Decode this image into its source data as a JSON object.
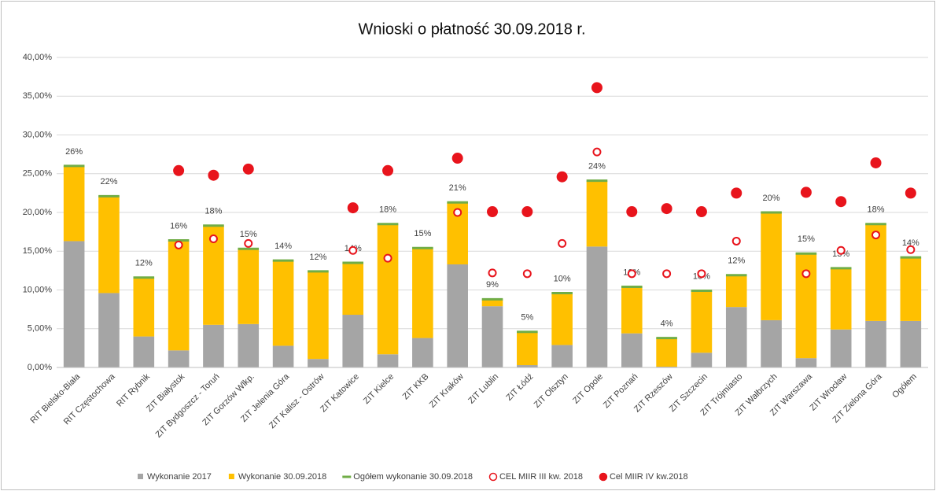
{
  "chart_data": {
    "type": "stacked-bar-marker",
    "title": "Wnioski o płatność 30.09.2018 r.",
    "categories": [
      "RIT Bielsko-Biała",
      "RIT Częstochowa",
      "RIT Rybnik",
      "ZIT Białystok",
      "ZIT Bydgoszcz - Toruń",
      "ZIT Gorzów Wlkp.",
      "ZIT Jelenia Góra",
      "ZIT Kalisz - Ostrów",
      "ZIT Katowice",
      "ZIT Kielce",
      "ZIT KKB",
      "ZIT Kraków",
      "ZIT Lublin",
      "ZIT Łódź",
      "ZIT Olsztyn",
      "ZIT Opole",
      "ZIT Poznań",
      "ZIT Rzeszów",
      "ZIT Szczecin",
      "ZIT Trójmiasto",
      "ZIT Wałbrzych",
      "ZIT Warszawa",
      "ZIT Wrocław",
      "ZIT Zielona Góra",
      "Ogółem"
    ],
    "series": [
      {
        "name": "Wykonanie 2017",
        "kind": "stack",
        "marker": "square",
        "color": "#a5a5a5",
        "values": [
          16.3,
          9.6,
          4,
          2.2,
          5.5,
          5.6,
          2.8,
          1.1,
          6.8,
          1.7,
          3.8,
          13.3,
          7.9,
          0.3,
          2.9,
          15.6,
          4.4,
          0.1,
          1.9,
          7.8,
          6.1,
          1.2,
          4.9,
          6,
          6
        ]
      },
      {
        "name": "Wykonanie 30.09.2018",
        "kind": "stack",
        "marker": "square",
        "color": "#ffc000",
        "values": [
          9.7,
          12.5,
          7.6,
          14.2,
          12.8,
          9.7,
          11,
          11.3,
          6.7,
          16.8,
          11.6,
          8,
          0.9,
          4.3,
          6.7,
          8.5,
          6,
          3.7,
          8,
          4.1,
          13.9,
          13.5,
          7.9,
          12.5,
          8.2
        ]
      },
      {
        "name": "Ogółem wykonanie 30.09.2018",
        "kind": "dash",
        "marker": "dash",
        "color": "#70ad47",
        "values": [
          26,
          22.1,
          11.6,
          16.4,
          18.3,
          15.3,
          13.8,
          12.4,
          13.5,
          18.5,
          15.4,
          21.3,
          8.8,
          4.6,
          9.6,
          24.1,
          10.4,
          3.8,
          9.9,
          11.9,
          20,
          14.7,
          12.8,
          18.5,
          14.2
        ],
        "value_labels": [
          "26%",
          "22%",
          "12%",
          "16%",
          "18%",
          "15%",
          "14%",
          "12%",
          "14%",
          "18%",
          "15%",
          "21%",
          "9%",
          "5%",
          "10%",
          "24%",
          "10%",
          "4%",
          "10%",
          "12%",
          "20%",
          "15%",
          "13%",
          "18%",
          "14%"
        ]
      },
      {
        "name": "CEL MIIR III kw. 2018",
        "kind": "point",
        "marker": "open-circle",
        "color": "#e8141c",
        "values": [
          null,
          null,
          null,
          15.8,
          16.6,
          16,
          null,
          null,
          15.1,
          14.1,
          null,
          20,
          12.2,
          12.1,
          16,
          27.8,
          12.1,
          12.1,
          12.1,
          16.3,
          null,
          12.1,
          15.1,
          17.1,
          15.2
        ]
      },
      {
        "name": "Cel MIIR IV kw.2018",
        "kind": "point",
        "marker": "circle",
        "color": "#e8141c",
        "values": [
          null,
          null,
          null,
          25.4,
          24.8,
          25.6,
          null,
          null,
          20.6,
          25.4,
          null,
          27,
          20.1,
          20.1,
          24.6,
          36.1,
          20.1,
          20.5,
          20.1,
          22.5,
          null,
          22.6,
          21.4,
          26.4,
          22.5
        ]
      }
    ],
    "ylim": [
      0,
      40
    ],
    "yticks": [
      {
        "value": 0,
        "label": "0,00%"
      },
      {
        "value": 5,
        "label": "5,00%"
      },
      {
        "value": 10,
        "label": "10,00%"
      },
      {
        "value": 15,
        "label": "15,00%"
      },
      {
        "value": 20,
        "label": "20,00%"
      },
      {
        "value": 25,
        "label": "25,00%"
      },
      {
        "value": 30,
        "label": "30,00%"
      },
      {
        "value": 35,
        "label": "35,00%"
      },
      {
        "value": 40,
        "label": "40,00%"
      }
    ],
    "grid": true
  }
}
